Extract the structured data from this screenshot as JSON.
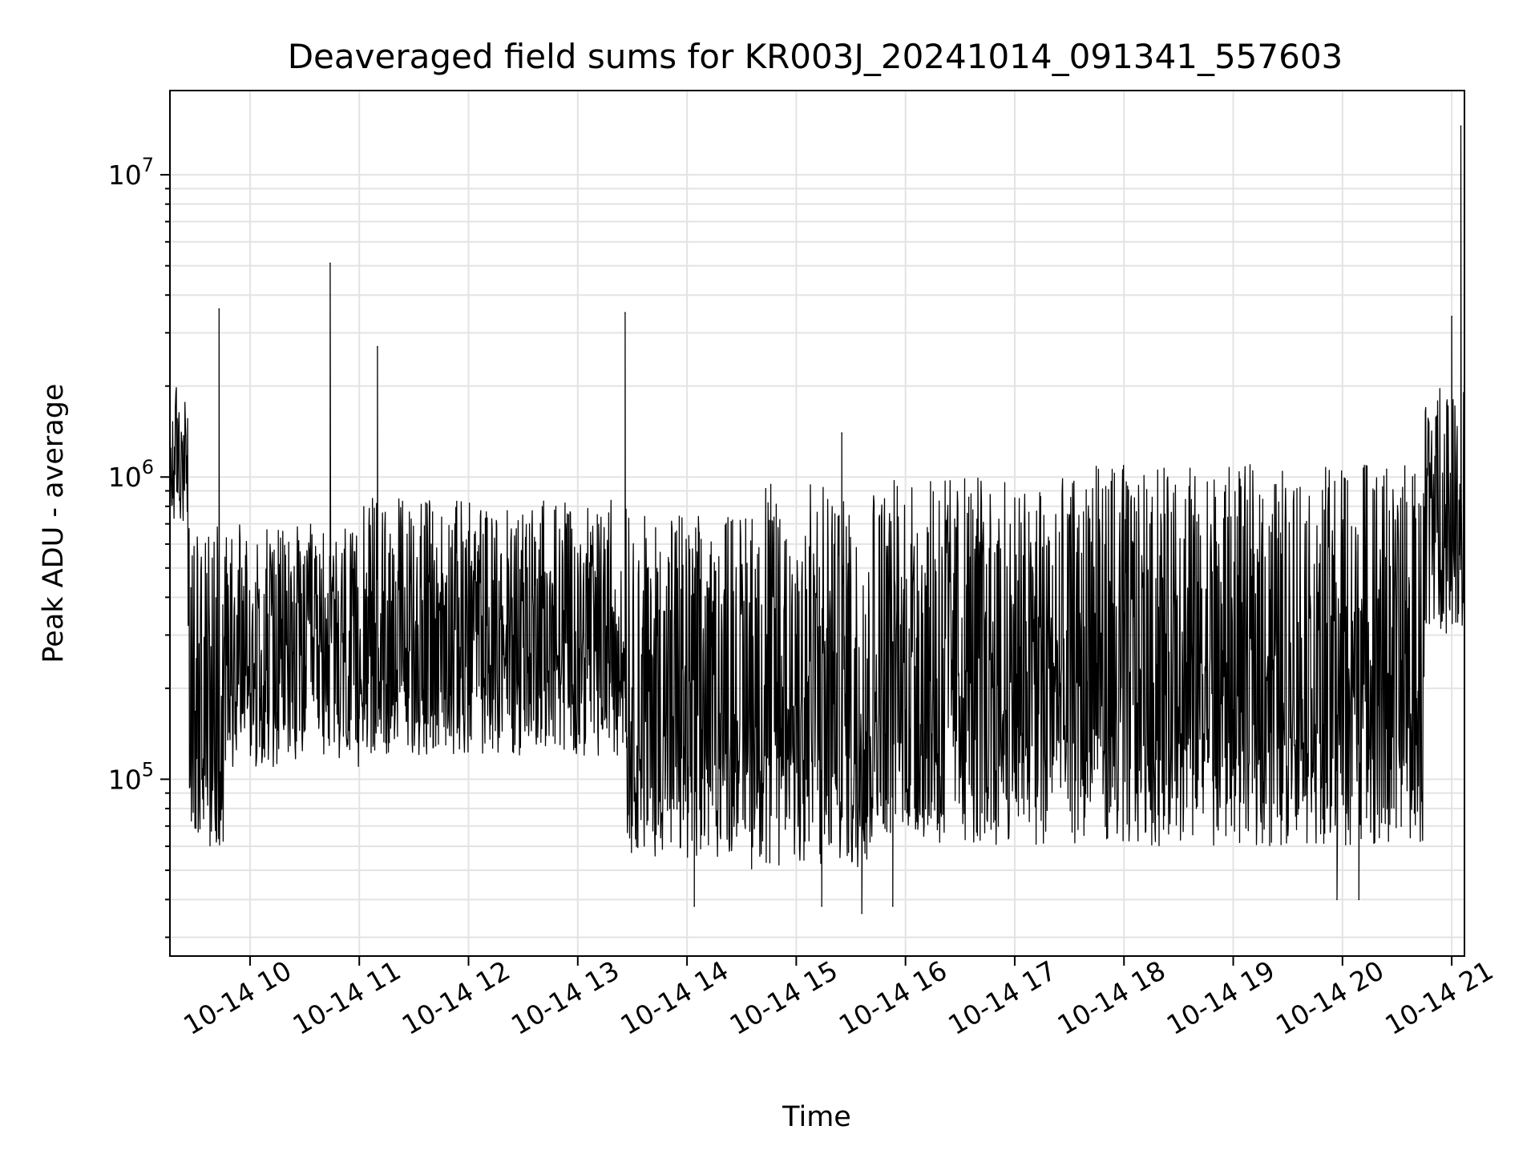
{
  "chart_data": {
    "type": "line",
    "title": "Deaveraged field sums for KR003J_20241014_091341_557603",
    "xlabel": "Time",
    "ylabel": "Peak ADU - average",
    "yscale": "log",
    "ylim": [
      26000,
      19000000
    ],
    "xlim": [
      "2024-10-14 09:16",
      "2024-10-14 21:07"
    ],
    "grid": true,
    "line_color": "#000000",
    "x_tick_labels": [
      "10-14 10",
      "10-14 11",
      "10-14 12",
      "10-14 13",
      "10-14 14",
      "10-14 15",
      "10-14 16",
      "10-14 17",
      "10-14 18",
      "10-14 19",
      "10-14 20",
      "10-14 21"
    ],
    "y_tick_labels": [
      {
        "value": 100000,
        "base": "10",
        "exp": "5"
      },
      {
        "value": 1000000,
        "base": "10",
        "exp": "6"
      },
      {
        "value": 10000000,
        "base": "10",
        "exp": "7"
      }
    ],
    "segments": [
      {
        "start": "2024-10-14 09:16",
        "end": "2024-10-14 09:26",
        "low": 700000,
        "high": 2000000
      },
      {
        "start": "2024-10-14 09:26",
        "end": "2024-10-14 09:46",
        "low": 60000,
        "high": 700000
      },
      {
        "start": "2024-10-14 09:46",
        "end": "2024-10-14 11:00",
        "low": 110000,
        "high": 700000
      },
      {
        "start": "2024-10-14 11:00",
        "end": "2024-10-14 13:27",
        "low": 120000,
        "high": 850000
      },
      {
        "start": "2024-10-14 13:27",
        "end": "2024-10-14 14:35",
        "low": 55000,
        "high": 750000
      },
      {
        "start": "2024-10-14 14:35",
        "end": "2024-10-14 15:40",
        "low": 50000,
        "high": 950000
      },
      {
        "start": "2024-10-14 15:40",
        "end": "2024-10-14 17:30",
        "low": 60000,
        "high": 1000000
      },
      {
        "start": "2024-10-14 17:30",
        "end": "2024-10-14 20:45",
        "low": 60000,
        "high": 1100000
      },
      {
        "start": "2024-10-14 20:45",
        "end": "2024-10-14 21:07",
        "low": 300000,
        "high": 2000000
      }
    ],
    "spikes": [
      {
        "x": "2024-10-14 09:43",
        "y": 3600000
      },
      {
        "x": "2024-10-14 10:44",
        "y": 5100000
      },
      {
        "x": "2024-10-14 11:10",
        "y": 2700000
      },
      {
        "x": "2024-10-14 13:26",
        "y": 3500000
      },
      {
        "x": "2024-10-14 15:25",
        "y": 1400000
      },
      {
        "x": "2024-10-14 21:00",
        "y": 3400000
      },
      {
        "x": "2024-10-14 21:05",
        "y": 14500000
      }
    ],
    "dips": [
      {
        "x": "2024-10-14 14:04",
        "y": 38000
      },
      {
        "x": "2024-10-14 15:14",
        "y": 38000
      },
      {
        "x": "2024-10-14 15:36",
        "y": 36000
      },
      {
        "x": "2024-10-14 15:53",
        "y": 38000
      },
      {
        "x": "2024-10-14 19:57",
        "y": 40000
      },
      {
        "x": "2024-10-14 20:09",
        "y": 40000
      }
    ]
  }
}
